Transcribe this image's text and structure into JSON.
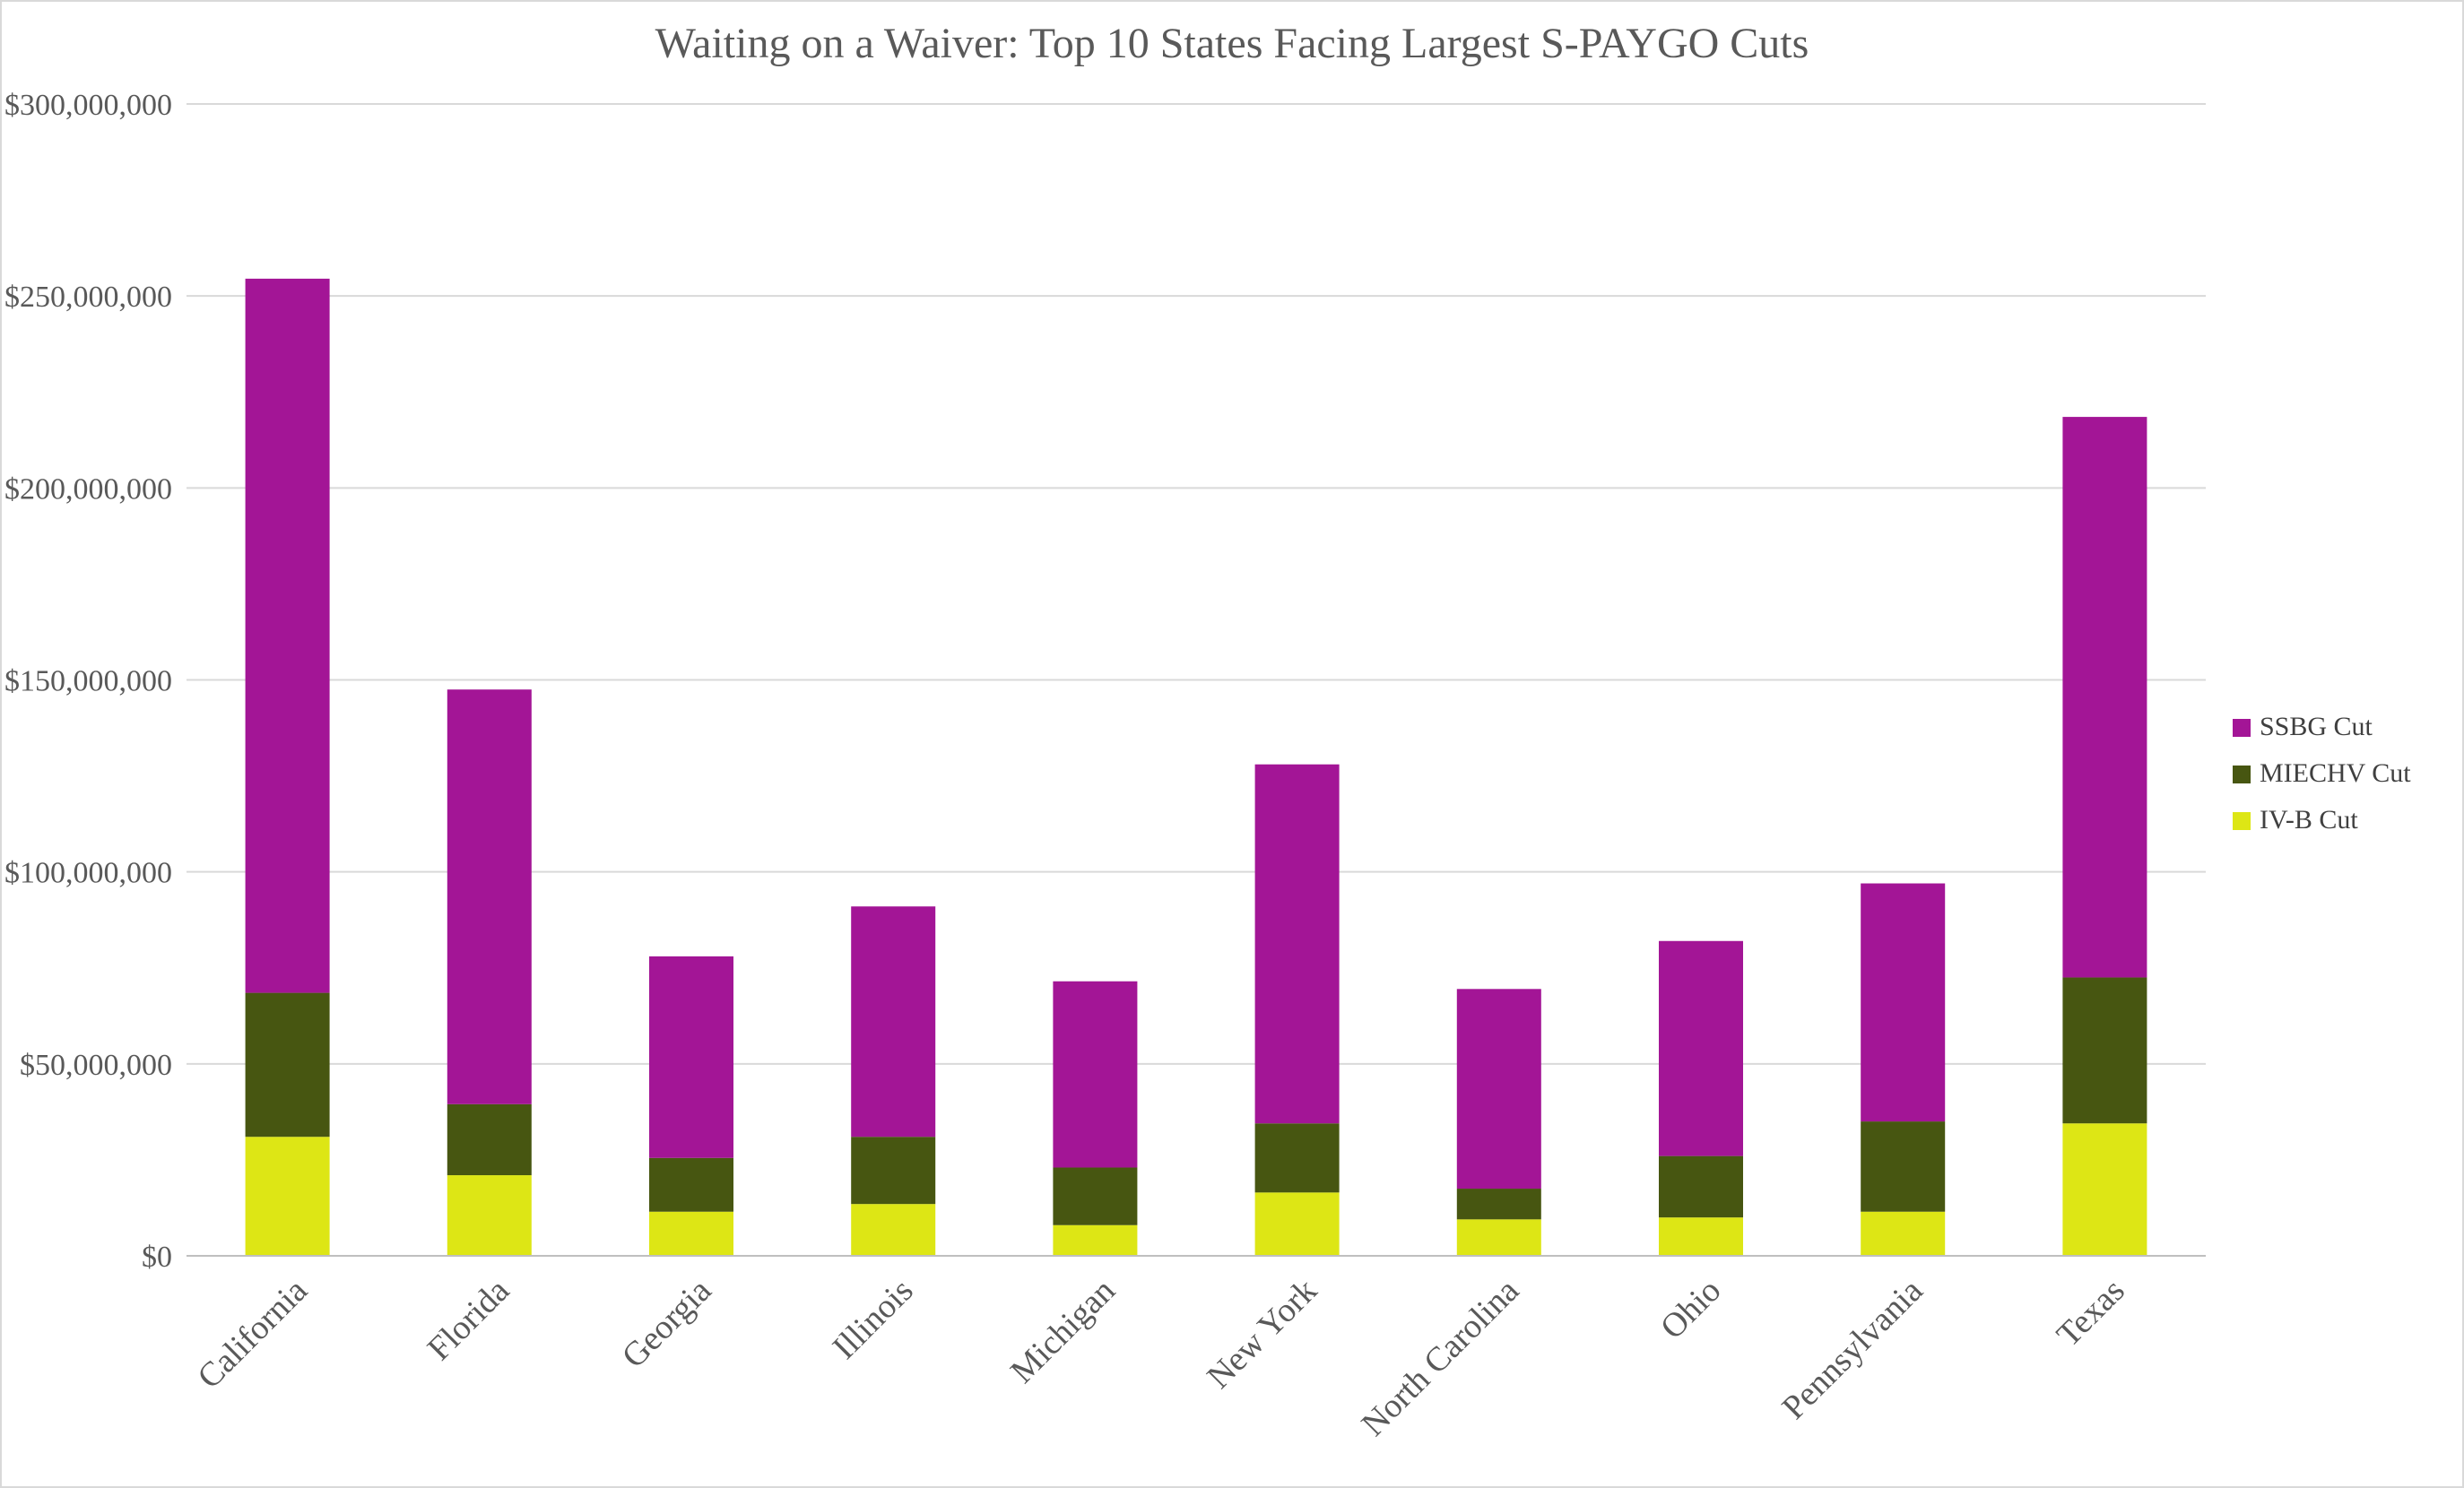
{
  "chart_data": {
    "type": "bar",
    "stacked": true,
    "title": "Waiting on a Waiver: Top 10 States Facing Largest S-PAYGO Cuts",
    "xlabel": "",
    "ylabel": "",
    "ylim": [
      0,
      300000000
    ],
    "y_ticks": [
      0,
      50000000,
      100000000,
      150000000,
      200000000,
      250000000,
      300000000
    ],
    "y_tick_labels": [
      "$0",
      "$50,000,000",
      "$100,000,000",
      "$150,000,000",
      "$200,000,000",
      "$250,000,000",
      "$300,000,000"
    ],
    "grid": true,
    "legend_position": "right",
    "categories": [
      "California",
      "Florida",
      "Georgia",
      "Illinois",
      "Michigan",
      "New York",
      "North Carolina",
      "Ohio",
      "Pennsylvania",
      "Texas"
    ],
    "series": [
      {
        "name": "IV-B Cut",
        "color": "#dde615",
        "values": [
          31000000,
          21000000,
          11500000,
          13500000,
          8000000,
          16500000,
          9500000,
          10000000,
          11500000,
          34500000
        ]
      },
      {
        "name": "MIECHV Cut",
        "color": "#475611",
        "values": [
          37500000,
          18500000,
          14000000,
          17500000,
          15000000,
          18000000,
          8000000,
          16000000,
          23500000,
          38000000
        ]
      },
      {
        "name": "SSBG Cut",
        "color": "#a31596",
        "values": [
          186000000,
          108000000,
          52500000,
          60000000,
          48500000,
          93500000,
          52000000,
          56000000,
          62000000,
          146000000
        ]
      }
    ],
    "legend_order": [
      "SSBG Cut",
      "MIECHV Cut",
      "IV-B Cut"
    ]
  }
}
